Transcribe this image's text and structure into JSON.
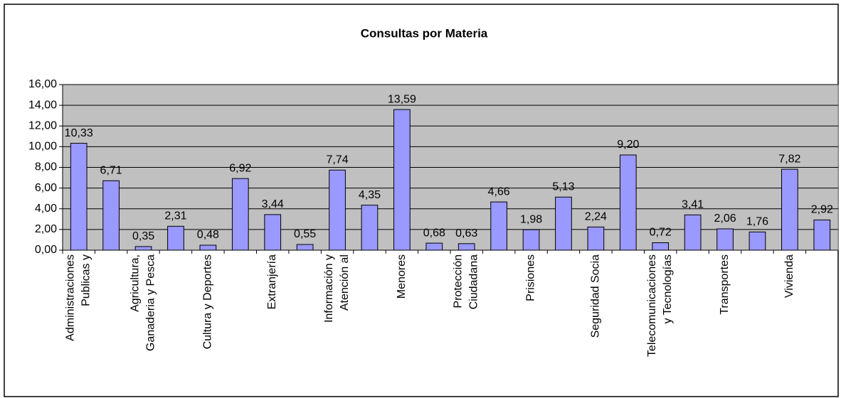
{
  "chart_data": {
    "type": "bar",
    "title": "Consultas por Materia",
    "categories": [
      "Administraciones\nPublicas y",
      null,
      "Agricultura,\nGanaderia y Pesca",
      null,
      "Cultura y Deportes",
      null,
      "Extranjería",
      null,
      "Información y\nAtención al",
      null,
      "Menores",
      null,
      "Protección\nCiudadana",
      null,
      "Prisiones",
      null,
      "Seguridad Socia",
      null,
      "Telecomunicaciones\ny Tecnologías",
      null,
      "Transportes",
      null,
      "Vivienda",
      null
    ],
    "values": [
      10.33,
      6.71,
      0.35,
      2.31,
      0.48,
      6.92,
      3.44,
      0.55,
      7.74,
      4.35,
      13.59,
      0.68,
      0.63,
      4.66,
      1.98,
      5.13,
      2.24,
      9.2,
      0.72,
      3.41,
      2.06,
      1.76,
      7.82,
      2.92
    ],
    "value_labels": [
      "10,33",
      "6,71",
      "0,35",
      "2,31",
      "0,48",
      "6,92",
      "3,44",
      "0,55",
      "7,74",
      "4,35",
      "13,59",
      "0,68",
      "0,63",
      "4,66",
      "1,98",
      "5,13",
      "2,24",
      "9,20",
      "0,72",
      "3,41",
      "2,06",
      "1,76",
      "7,82",
      "2,92"
    ],
    "color": "#9999ff",
    "ylim": [
      0,
      16
    ],
    "yticks": [
      {
        "value": 0,
        "label": "0,00"
      },
      {
        "value": 2,
        "label": "2,00"
      },
      {
        "value": 4,
        "label": "4,00"
      },
      {
        "value": 6,
        "label": "6,00"
      },
      {
        "value": 8,
        "label": "8,00"
      },
      {
        "value": 10,
        "label": "10,00"
      },
      {
        "value": 12,
        "label": "12,00"
      },
      {
        "value": 14,
        "label": "14,00"
      },
      {
        "value": 16,
        "label": "16,00"
      }
    ],
    "grid": true
  }
}
